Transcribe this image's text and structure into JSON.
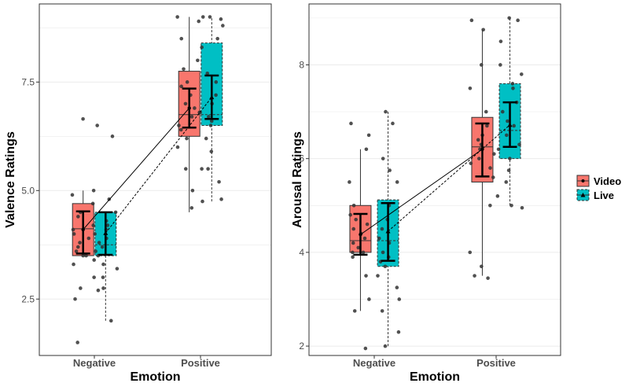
{
  "colors": {
    "video": "#F8766D",
    "live": "#00BFC4",
    "point": "#333333",
    "grid": "#ebebeb",
    "panel_border": "#333333"
  },
  "legend": {
    "entries": [
      {
        "name": "Video",
        "color": "#F8766D"
      },
      {
        "name": "Live",
        "color": "#00BFC4"
      }
    ]
  },
  "chart_data": [
    {
      "type": "box",
      "xlabel": "Emotion",
      "ylabel": "Valence Ratings",
      "ylim": [
        1.2,
        9.3
      ],
      "yticks": [
        2.5,
        5.0,
        7.5
      ],
      "ytick_labels": [
        "2.5",
        "5.0",
        "7.5"
      ],
      "categories": [
        "Negative",
        "Positive"
      ],
      "series": [
        {
          "name": "Video",
          "boxes": [
            {
              "category": "Negative",
              "whisker_low": 3.5,
              "q1": 3.5,
              "median": 4.12,
              "q3": 4.7,
              "whisker_high": 5.0,
              "mean": 4.1,
              "ci": [
                3.55,
                4.52
              ]
            },
            {
              "category": "Positive",
              "whisker_low": 4.5,
              "q1": 6.25,
              "median": 6.75,
              "q3": 7.75,
              "whisker_high": 9.0,
              "mean": 6.9,
              "ci": [
                6.45,
                7.35
              ]
            }
          ],
          "points": [
            {
              "category": "Negative",
              "y": [
                4.7,
                5.0,
                4.9,
                4.5,
                4.2,
                4.0,
                3.8,
                3.5,
                3.5,
                3.6,
                3.3,
                3.0,
                2.75,
                2.5,
                6.65,
                1.5,
                4.1,
                3.9,
                4.4,
                3.7
              ]
            },
            {
              "category": "Positive",
              "y": [
                9.0,
                8.9,
                8.5,
                8.0,
                7.5,
                7.4,
                7.2,
                7.0,
                6.9,
                6.7,
                6.5,
                6.4,
                6.2,
                6.0,
                5.5,
                5.5,
                5.0,
                4.6,
                6.8,
                7.8
              ]
            }
          ]
        },
        {
          "name": "Live",
          "boxes": [
            {
              "category": "Negative",
              "whisker_low": 2.0,
              "q1": 3.5,
              "median": 3.75,
              "q3": 4.5,
              "whisker_high": 4.5,
              "mean": 4.02,
              "ci": [
                3.52,
                4.5
              ]
            },
            {
              "category": "Positive",
              "whisker_low": 4.75,
              "q1": 6.5,
              "median": 6.75,
              "q3": 8.4,
              "whisker_high": 9.0,
              "mean": 7.15,
              "ci": [
                6.65,
                7.65
              ]
            }
          ],
          "points": [
            {
              "category": "Negative",
              "y": [
                6.5,
                6.25,
                4.8,
                4.5,
                4.3,
                4.2,
                4.0,
                3.9,
                3.8,
                3.6,
                3.5,
                3.4,
                3.3,
                3.2,
                3.0,
                2.75,
                2.7,
                2.0,
                4.1,
                3.7
              ]
            },
            {
              "category": "Positive",
              "y": [
                9.0,
                9.0,
                8.95,
                8.8,
                8.5,
                8.3,
                7.5,
                7.2,
                7.0,
                6.8,
                6.7,
                6.6,
                6.5,
                6.2,
                5.9,
                5.5,
                5.2,
                4.8,
                4.75,
                7.7
              ]
            }
          ]
        }
      ],
      "mean_lines": [
        {
          "series": "Video",
          "style": "solid"
        },
        {
          "series": "Live",
          "style": "dashed"
        }
      ]
    },
    {
      "type": "box",
      "xlabel": "Emotion",
      "ylabel": "Arousal Ratings",
      "ylim": [
        1.8,
        9.3
      ],
      "yticks": [
        2,
        4,
        6,
        8
      ],
      "ytick_labels": [
        "2",
        "4",
        "6",
        "8"
      ],
      "categories": [
        "Negative",
        "Positive"
      ],
      "series": [
        {
          "name": "Video",
          "boxes": [
            {
              "category": "Negative",
              "whisker_low": 2.75,
              "q1": 4.0,
              "median": 4.25,
              "q3": 5.0,
              "whisker_high": 6.2,
              "mean": 4.38,
              "ci": [
                3.95,
                4.82
              ]
            },
            {
              "category": "Positive",
              "whisker_low": 3.5,
              "q1": 5.5,
              "median": 6.25,
              "q3": 6.88,
              "whisker_high": 8.75,
              "mean": 6.2,
              "ci": [
                5.62,
                6.75
              ]
            }
          ],
          "points": [
            {
              "category": "Negative",
              "y": [
                6.75,
                6.5,
                6.2,
                5.5,
                5.0,
                4.8,
                4.6,
                4.5,
                4.4,
                4.3,
                4.2,
                4.1,
                4.0,
                4.0,
                3.9,
                3.5,
                3.0,
                2.75,
                1.95,
                4.7
              ]
            },
            {
              "category": "Positive",
              "y": [
                8.95,
                8.75,
                8.0,
                7.5,
                7.0,
                6.7,
                6.5,
                6.3,
                6.2,
                6.1,
                6.0,
                5.9,
                5.8,
                5.0,
                4.0,
                3.7,
                3.5,
                3.45,
                6.4,
                5.6
              ]
            }
          ]
        },
        {
          "name": "Live",
          "boxes": [
            {
              "category": "Negative",
              "whisker_low": 2.0,
              "q1": 3.7,
              "median": 4.25,
              "q3": 5.12,
              "whisker_high": 7.0,
              "mean": 4.45,
              "ci": [
                3.82,
                5.05
              ]
            },
            {
              "category": "Positive",
              "whisker_low": 5.0,
              "q1": 6.0,
              "median": 6.6,
              "q3": 7.6,
              "whisker_high": 9.0,
              "mean": 6.72,
              "ci": [
                6.25,
                7.2
              ]
            }
          ],
          "points": [
            {
              "category": "Negative",
              "y": [
                7.0,
                6.75,
                6.0,
                5.75,
                5.5,
                5.0,
                4.7,
                4.5,
                4.3,
                4.2,
                4.0,
                3.9,
                3.8,
                3.7,
                3.5,
                3.25,
                3.0,
                2.75,
                2.3,
                2.0
              ]
            },
            {
              "category": "Positive",
              "y": [
                9.0,
                8.95,
                8.5,
                8.0,
                7.8,
                7.6,
                7.5,
                7.2,
                7.0,
                6.8,
                6.7,
                6.5,
                6.3,
                6.2,
                6.0,
                5.75,
                5.5,
                5.2,
                5.0,
                4.95
              ]
            }
          ]
        }
      ],
      "mean_lines": [
        {
          "series": "Video",
          "style": "solid"
        },
        {
          "series": "Live",
          "style": "dashed"
        }
      ]
    }
  ]
}
